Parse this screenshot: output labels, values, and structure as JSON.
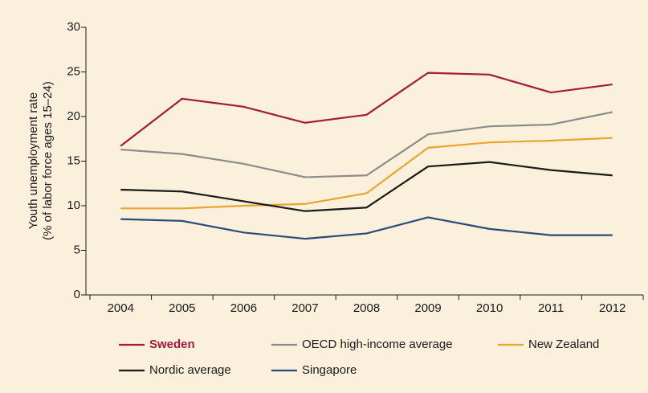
{
  "chart_data": {
    "type": "line",
    "y_label": [
      "Youth unemployment rate",
      "(% of labor force ages 15–24)"
    ],
    "categories": [
      "2004",
      "2005",
      "2006",
      "2007",
      "2008",
      "2009",
      "2010",
      "2011",
      "2012"
    ],
    "series": [
      {
        "name": "Sweden",
        "color": "#a6193a",
        "values": [
          16.7,
          22.0,
          21.1,
          19.3,
          20.2,
          24.9,
          24.7,
          22.7,
          23.6
        ]
      },
      {
        "name": "OECD high-income average",
        "color": "#8c8c8c",
        "values": [
          16.3,
          15.8,
          14.7,
          13.2,
          13.4,
          18.0,
          18.9,
          19.1,
          20.5
        ]
      },
      {
        "name": "New Zealand",
        "color": "#e8a530",
        "values": [
          9.7,
          9.7,
          10.0,
          10.2,
          11.4,
          16.5,
          17.1,
          17.3,
          17.6
        ]
      },
      {
        "name": "Nordic average",
        "color": "#1a1a1a",
        "values": [
          11.8,
          11.6,
          10.5,
          9.4,
          9.8,
          14.4,
          14.9,
          14.0,
          13.4
        ]
      },
      {
        "name": "Singapore",
        "color": "#2b4a7c",
        "values": [
          8.5,
          8.3,
          7.0,
          6.3,
          6.9,
          8.7,
          7.4,
          6.7,
          6.7
        ]
      }
    ],
    "ylim": [
      0,
      30
    ],
    "yticks": [
      0,
      5,
      10,
      15,
      20,
      25,
      30
    ],
    "grid": false
  }
}
